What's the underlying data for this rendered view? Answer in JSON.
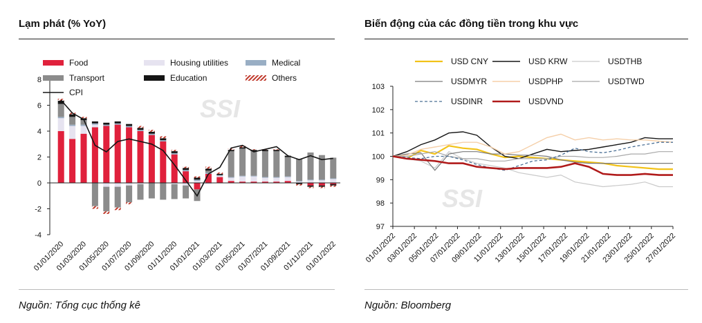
{
  "left": {
    "title": "Lạm phát (% YoY)",
    "source": "Nguồn: Tổng cục thống kê",
    "watermark": "SSI"
  },
  "right": {
    "title": "Biến động của các đồng tiền trong khu vực",
    "source": "Nguồn: Bloomberg",
    "watermark": "SSI"
  },
  "chart_data": [
    {
      "type": "bar",
      "stacked": true,
      "ylim": [
        -4,
        8
      ],
      "yticks": [
        -4,
        -2,
        0,
        2,
        4,
        6,
        8
      ],
      "categories": [
        "01/2020",
        "02/2020",
        "03/2020",
        "04/2020",
        "05/2020",
        "06/2020",
        "07/2020",
        "08/2020",
        "09/2020",
        "10/2020",
        "11/2020",
        "12/2020",
        "01/2021",
        "02/2021",
        "03/2021",
        "04/2021",
        "05/2021",
        "06/2021",
        "07/2021",
        "08/2021",
        "09/2021",
        "10/2021",
        "11/2021",
        "12/2021",
        "01/2022"
      ],
      "xtick_labels": [
        "01/01/2020",
        "01/03/2020",
        "01/05/2020",
        "01/07/2020",
        "01/09/2020",
        "01/11/2020",
        "01/01/2021",
        "01/03/2021",
        "01/05/2021",
        "01/07/2021",
        "01/09/2021",
        "01/11/2021",
        "01/01/2022"
      ],
      "series": [
        {
          "name": "Food",
          "color": "#e0213c",
          "kind": "solid",
          "values": [
            4.0,
            3.4,
            3.8,
            4.3,
            4.4,
            4.5,
            4.3,
            4.0,
            3.7,
            3.2,
            2.2,
            0.9,
            -0.5,
            0.7,
            0.45,
            0.15,
            0.1,
            0.1,
            0.1,
            0.1,
            0.15,
            0.0,
            -0.2,
            -0.2,
            -0.1
          ]
        },
        {
          "name": "Housing utilities",
          "color": "#e6e3f0",
          "kind": "solid",
          "values": [
            1.0,
            1.0,
            0.6,
            0.2,
            -0.3,
            -0.3,
            -0.2,
            -0.1,
            0.0,
            0.0,
            -0.1,
            -0.2,
            0.15,
            -0.1,
            0.1,
            0.25,
            0.4,
            0.4,
            0.3,
            0.3,
            0.3,
            0.1,
            0.2,
            0.2,
            0.3
          ]
        },
        {
          "name": "Medical",
          "color": "#99aec4",
          "kind": "solid",
          "values": [
            0.1,
            0.1,
            0.1,
            0.1,
            0.1,
            0.1,
            0.1,
            0.1,
            0.1,
            0.1,
            0.1,
            0.1,
            0.1,
            0.1,
            0.05,
            0.05,
            0.05,
            0.05,
            0.05,
            0.05,
            0.05,
            0.05,
            0.05,
            0.05,
            0.05
          ]
        },
        {
          "name": "Transport",
          "color": "#8c8c8c",
          "kind": "solid",
          "values": [
            1.0,
            0.6,
            0.35,
            -1.8,
            -1.9,
            -1.6,
            -1.3,
            -1.2,
            -1.2,
            -1.3,
            -1.15,
            -1.0,
            -0.9,
            0.15,
            0.0,
            2.0,
            2.1,
            1.9,
            2.0,
            2.0,
            1.5,
            1.7,
            2.1,
            1.9,
            1.6
          ]
        },
        {
          "name": "Education",
          "color": "#151515",
          "kind": "solid",
          "values": [
            0.25,
            0.2,
            0.15,
            0.15,
            0.15,
            0.15,
            0.15,
            0.15,
            0.15,
            0.15,
            0.15,
            0.15,
            0.15,
            0.15,
            0.1,
            0.1,
            0.1,
            0.1,
            0.1,
            0.1,
            0.1,
            -0.1,
            -0.1,
            -0.1,
            -0.1
          ]
        },
        {
          "name": "Others",
          "color": "#c0392b",
          "kind": "hatch",
          "values": [
            0.15,
            0.15,
            0.1,
            -0.2,
            -0.2,
            -0.2,
            -0.15,
            0.15,
            0.15,
            0.15,
            0.1,
            0.1,
            0.1,
            0.15,
            0.1,
            0.1,
            0.1,
            0.05,
            0.05,
            0.05,
            0.0,
            -0.1,
            -0.1,
            -0.1,
            -0.1
          ]
        }
      ],
      "line_series": {
        "name": "CPI",
        "color": "#151515",
        "values": [
          6.4,
          5.4,
          4.9,
          2.9,
          2.4,
          3.2,
          3.4,
          3.2,
          3.0,
          2.5,
          1.4,
          0.2,
          -1.0,
          0.7,
          1.2,
          2.7,
          2.9,
          2.4,
          2.6,
          2.8,
          2.1,
          1.8,
          2.1,
          1.8,
          1.9
        ]
      }
    },
    {
      "type": "line",
      "ylim": [
        97,
        103
      ],
      "yticks": [
        97,
        98,
        99,
        100,
        101,
        102,
        103
      ],
      "x": [
        "01/01/2022",
        "03/01/2022",
        "04/01/2022",
        "05/01/2022",
        "06/01/2022",
        "07/01/2022",
        "10/01/2022",
        "11/01/2022",
        "12/01/2022",
        "13/01/2022",
        "14/01/2022",
        "17/01/2022",
        "18/01/2022",
        "19/01/2022",
        "20/01/2022",
        "21/01/2022",
        "24/01/2022",
        "25/01/2022",
        "26/01/2022",
        "27/01/2022",
        "28/01/2022"
      ],
      "xtick_labels": [
        "01/01/2022",
        "03/01/2022",
        "05/01/2022",
        "07/01/2022",
        "09/01/2022",
        "11/01/2022",
        "13/01/2022",
        "15/01/2022",
        "17/01/2022",
        "19/01/2022",
        "21/01/2022",
        "23/01/2022",
        "25/01/2022",
        "27/01/2022"
      ],
      "series": [
        {
          "name": "USD CNY",
          "color": "#f2c218",
          "width": 2.2,
          "dash": "",
          "values": [
            100,
            99.9,
            100.25,
            100.1,
            100.45,
            100.35,
            100.3,
            100.1,
            99.95,
            100.0,
            99.95,
            99.9,
            99.85,
            99.8,
            99.75,
            99.7,
            99.6,
            99.55,
            99.5,
            99.45,
            99.45
          ]
        },
        {
          "name": "USD KRW",
          "color": "#151515",
          "width": 1.4,
          "dash": "",
          "values": [
            100,
            100.2,
            100.5,
            100.7,
            101.0,
            101.05,
            100.9,
            100.4,
            100.0,
            99.9,
            100.1,
            100.3,
            100.2,
            100.25,
            100.3,
            100.4,
            100.5,
            100.6,
            100.8,
            100.75,
            100.75
          ]
        },
        {
          "name": "USDTHB",
          "color": "#c9c9c9",
          "width": 1.2,
          "dash": "",
          "values": [
            100,
            99.9,
            99.8,
            99.5,
            100.2,
            99.9,
            99.7,
            99.6,
            99.5,
            99.3,
            99.2,
            99.1,
            99.2,
            98.9,
            98.8,
            98.7,
            98.75,
            98.8,
            98.9,
            98.7,
            98.7
          ]
        },
        {
          "name": "USDMYR",
          "color": "#7a7a7a",
          "width": 1.2,
          "dash": "",
          "values": [
            100,
            100.1,
            100.15,
            99.4,
            100.1,
            100.2,
            100.2,
            100.1,
            100.1,
            100.05,
            100.05,
            100.0,
            99.85,
            99.75,
            99.7,
            99.7,
            99.7,
            99.7,
            99.7,
            99.7,
            99.7
          ]
        },
        {
          "name": "USDPHP",
          "color": "#f5cfa8",
          "width": 1.4,
          "dash": "",
          "values": [
            100,
            100.05,
            100.3,
            100.4,
            100.5,
            100.6,
            100.6,
            100.4,
            100.1,
            100.2,
            100.5,
            100.8,
            100.95,
            100.7,
            100.8,
            100.7,
            100.75,
            100.7,
            100.7,
            100.65,
            100.6
          ]
        },
        {
          "name": "USDTWD",
          "color": "#a8a8a8",
          "width": 1.2,
          "dash": "",
          "values": [
            100,
            100.0,
            100.1,
            100.2,
            100.0,
            99.9,
            99.9,
            99.8,
            99.8,
            99.9,
            99.9,
            99.9,
            100.0,
            100.0,
            99.95,
            99.95,
            100.0,
            100.1,
            100.1,
            100.2,
            100.2
          ]
        },
        {
          "name": "USDINR",
          "color": "#4a6f95",
          "width": 1.3,
          "dash": "4,3",
          "values": [
            100,
            99.95,
            99.9,
            100.0,
            100.0,
            99.85,
            99.65,
            99.5,
            99.4,
            99.6,
            99.8,
            99.85,
            100.05,
            100.35,
            100.2,
            100.15,
            100.25,
            100.4,
            100.5,
            100.6,
            100.6
          ]
        },
        {
          "name": "USDVND",
          "color": "#b01a1a",
          "width": 2.6,
          "dash": "",
          "values": [
            100,
            99.9,
            99.85,
            99.8,
            99.7,
            99.7,
            99.55,
            99.5,
            99.45,
            99.5,
            99.5,
            99.5,
            99.55,
            99.7,
            99.55,
            99.25,
            99.2,
            99.2,
            99.25,
            99.2,
            99.2
          ]
        }
      ]
    }
  ]
}
